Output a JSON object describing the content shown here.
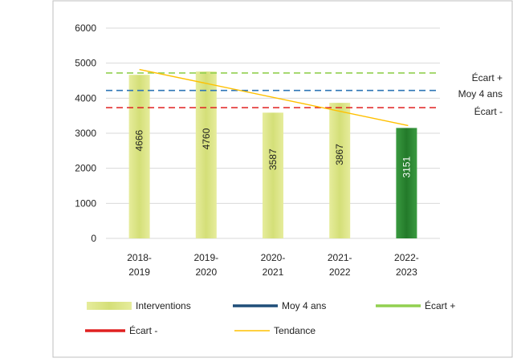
{
  "chart_data": {
    "type": "bar",
    "categories": [
      [
        "2018-",
        "2019"
      ],
      [
        "2019-",
        "2020"
      ],
      [
        "2020-",
        "2021"
      ],
      [
        "2021-",
        "2022"
      ],
      [
        "2022-",
        "2023"
      ]
    ],
    "values": [
      4666,
      4760,
      3587,
      3867,
      3151
    ],
    "value_labels": [
      "4666",
      "4760",
      "3587",
      "3867",
      "3151"
    ],
    "y_ticks": [
      "0",
      "1000",
      "2000",
      "3000",
      "4000",
      "5000",
      "6000"
    ],
    "ylim": [
      0,
      6000
    ],
    "grid": true,
    "reference_lines": [
      {
        "name": "Écart +",
        "value": 4720,
        "color": "#92d050",
        "style": "dashed"
      },
      {
        "name": "Moy 4 ans",
        "value": 4220,
        "color": "#2e75b6",
        "style": "dashed"
      },
      {
        "name": "Écart -",
        "value": 3730,
        "color": "#e02020",
        "style": "dashed"
      }
    ],
    "trend": {
      "name": "Tendance",
      "start": 4820,
      "end": 3220,
      "color": "#ffc000"
    },
    "bar_colors": {
      "normal": "#d9e384",
      "highlight": "#2e8b35"
    },
    "highlight_index": 4,
    "legend": {
      "placement": "bottom",
      "items": [
        {
          "label": "Interventions",
          "kind": "bar",
          "color": "#d9e384"
        },
        {
          "label": "Moy 4 ans",
          "kind": "line",
          "color": "#1f4e79"
        },
        {
          "label": "Écart +",
          "kind": "line",
          "color": "#92d050"
        },
        {
          "label": "Écart -",
          "kind": "line",
          "color": "#e02020"
        },
        {
          "label": "Tendance",
          "kind": "thin-line",
          "color": "#ffc000"
        }
      ]
    }
  }
}
